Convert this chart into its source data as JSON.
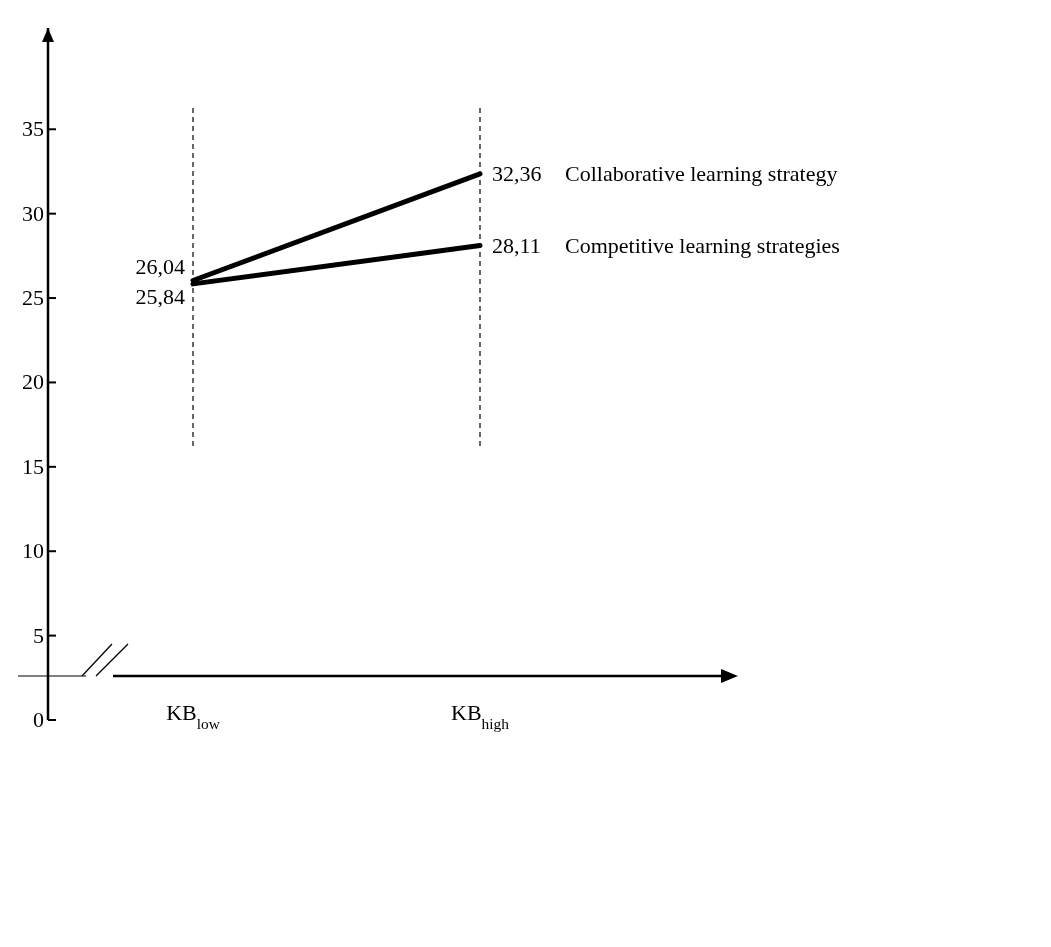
{
  "chart_data": {
    "type": "line",
    "categories": [
      "KB$_{low}$",
      "KB$_{high}$"
    ],
    "series": [
      {
        "name": "Collaborative learning strategy",
        "color": "#000000",
        "values": [
          26.04,
          32.36
        ],
        "value_labels": [
          "26,04",
          "32,36"
        ]
      },
      {
        "name": "Competitive learning strategies",
        "color": "#000000",
        "values": [
          25.84,
          28.11
        ],
        "value_labels": [
          "25,84",
          "28,11"
        ]
      }
    ],
    "ylim": [
      0,
      41
    ],
    "yticks": [
      0,
      5,
      10,
      15,
      20,
      25,
      30,
      35
    ],
    "marker": "none",
    "line_style": "solid",
    "ref_lines": [
      {
        "axis": "x",
        "value": "KB$_{low}$",
        "line_style": "dashed",
        "color": "#000000"
      },
      {
        "axis": "x",
        "value": "KB$_{high}$",
        "line_style": "dashed",
        "color": "#000000"
      }
    ]
  }
}
